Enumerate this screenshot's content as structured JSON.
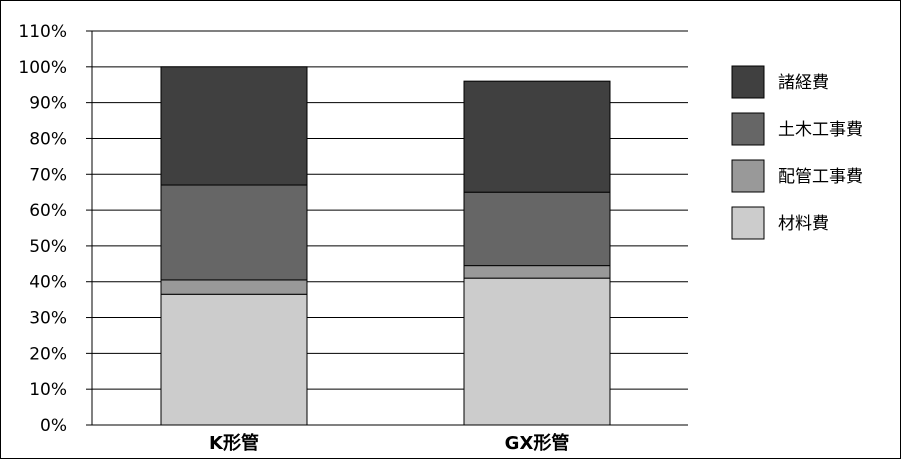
{
  "chart_data": {
    "type": "bar",
    "stacked": true,
    "categories": [
      "K形管",
      "GX形管"
    ],
    "series": [
      {
        "name": "材料費",
        "color": "#cccccc",
        "values": [
          36.5,
          41
        ]
      },
      {
        "name": "配管工事費",
        "color": "#999999",
        "values": [
          4,
          3.5
        ]
      },
      {
        "name": "土木工事費",
        "color": "#666666",
        "values": [
          26.5,
          20.5
        ]
      },
      {
        "name": "諸経費",
        "color": "#404040",
        "values": [
          33,
          31
        ]
      }
    ],
    "y_ticks": [
      "0%",
      "10%",
      "20%",
      "30%",
      "40%",
      "50%",
      "60%",
      "70%",
      "80%",
      "90%",
      "100%",
      "110%"
    ],
    "ylim": [
      0,
      110
    ],
    "grid": true,
    "legend_position": "right",
    "legend_order": [
      "諸経費",
      "土木工事費",
      "配管工事費",
      "材料費"
    ]
  }
}
